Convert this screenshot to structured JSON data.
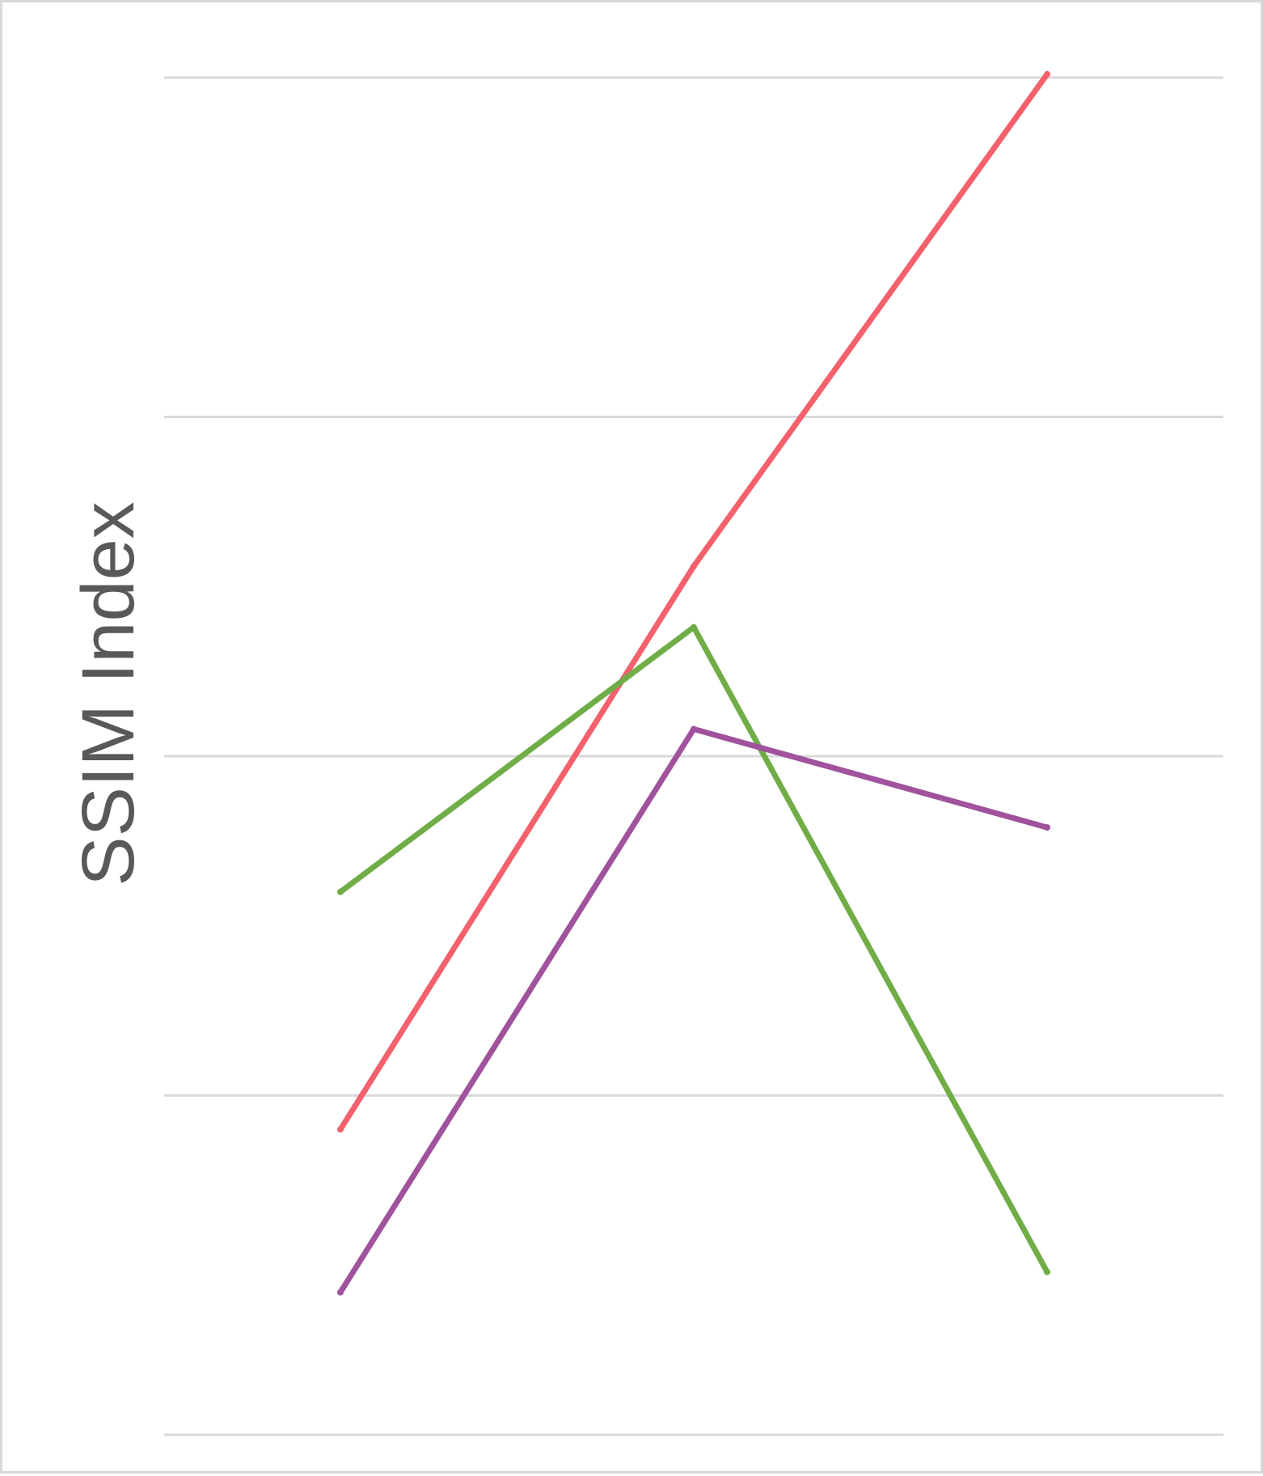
{
  "chart_data": {
    "type": "line",
    "title": "",
    "xlabel": "",
    "ylabel": "SSIM Index",
    "x": [
      1,
      2,
      3
    ],
    "ylim": [
      0,
      4
    ],
    "gridlines": [
      0,
      1,
      2,
      3,
      4
    ],
    "grid": true,
    "legend": "none",
    "series": [
      {
        "color": "#f4606c",
        "values": [
          0.9,
          2.56,
          4.01
        ]
      },
      {
        "color": "#70ad47",
        "values": [
          1.6,
          2.38,
          0.48
        ]
      },
      {
        "color": "#a0529c",
        "values": [
          0.42,
          2.08,
          1.79
        ]
      }
    ]
  }
}
